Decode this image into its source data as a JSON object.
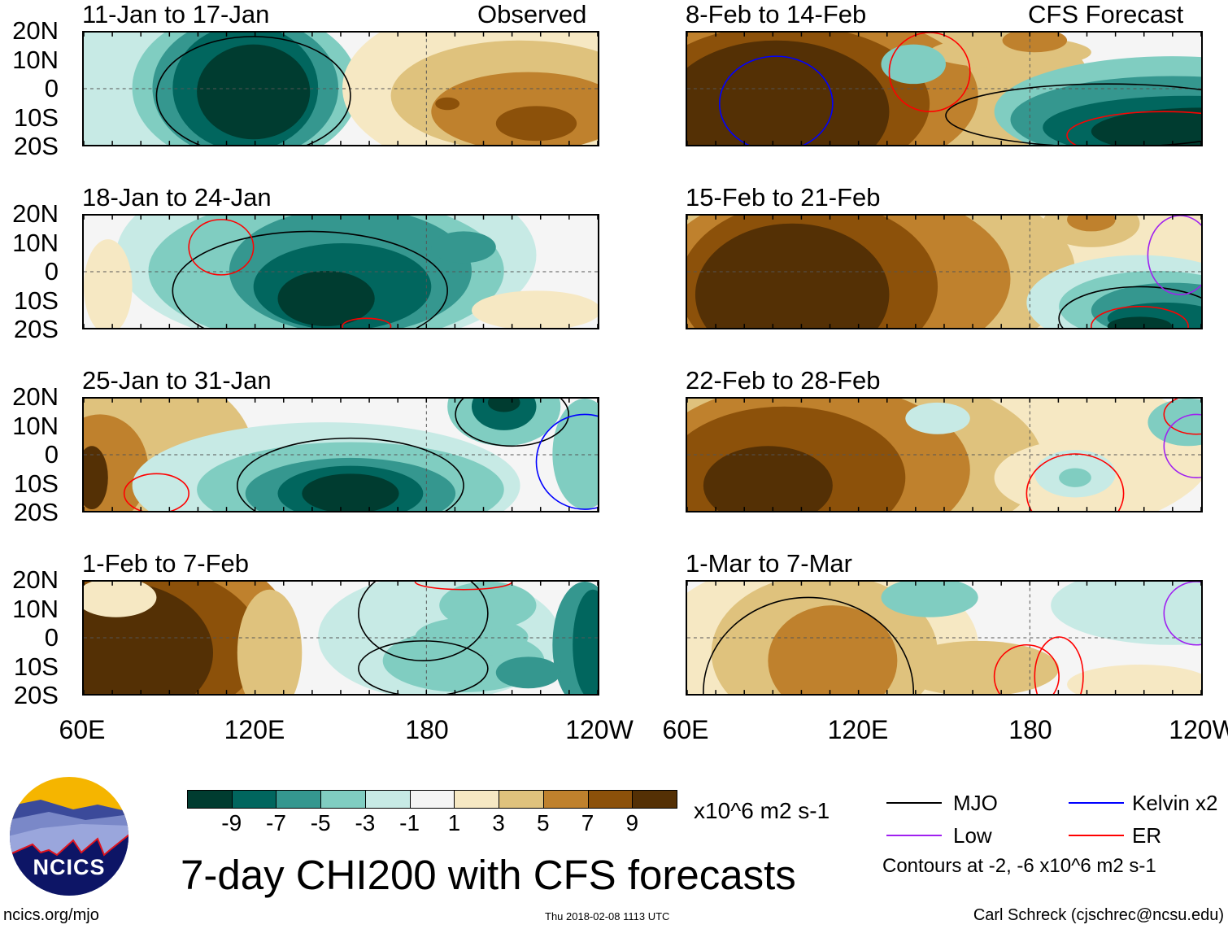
{
  "header": {
    "observed_label": "Observed",
    "forecast_label": "CFS Forecast"
  },
  "panels": [
    {
      "title": "11-Jan to 17-Jan",
      "type": "observed"
    },
    {
      "title": "18-Jan to 24-Jan",
      "type": "observed"
    },
    {
      "title": "25-Jan to 31-Jan",
      "type": "observed"
    },
    {
      "title": "1-Feb to 7-Feb",
      "type": "observed"
    },
    {
      "title": "8-Feb to 14-Feb",
      "type": "forecast"
    },
    {
      "title": "15-Feb to 21-Feb",
      "type": "forecast"
    },
    {
      "title": "22-Feb to 28-Feb",
      "type": "forecast"
    },
    {
      "title": "1-Mar to 7-Mar",
      "type": "forecast"
    }
  ],
  "lat_labels": [
    "20N",
    "10N",
    "0",
    "10S",
    "20S"
  ],
  "lon_labels": [
    "60E",
    "120E",
    "180",
    "120W"
  ],
  "colorbar": {
    "labels": [
      "-9",
      "-7",
      "-5",
      "-3",
      "-1",
      "1",
      "3",
      "5",
      "7",
      "9"
    ],
    "colors": [
      "#003c30",
      "#01665e",
      "#35978f",
      "#80cdc1",
      "#c7eae5",
      "#f5f5f5",
      "#f6e8c3",
      "#dfc27d",
      "#bf812d",
      "#8c510a",
      "#543005"
    ],
    "units": "x10^6 m2 s-1"
  },
  "title": "7-day CHI200 with CFS forecasts",
  "legend": {
    "items": [
      {
        "label": "MJO",
        "color": "#000000"
      },
      {
        "label": "Kelvin x2",
        "color": "#0000ff"
      },
      {
        "label": "Low",
        "color": "#a020f0"
      },
      {
        "label": "ER",
        "color": "#ff0000"
      }
    ],
    "contours_note": "Contours at -2, -6 x10^6 m2 s-1"
  },
  "logo": {
    "text": "NCICS"
  },
  "footer": {
    "url": "ncics.org/mjo",
    "timestamp": "Thu 2018-02-08 1113 UTC",
    "credit": "Carl Schreck (cjschrec@ncsu.edu)"
  }
}
